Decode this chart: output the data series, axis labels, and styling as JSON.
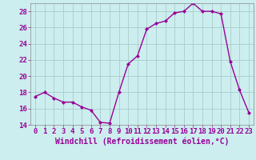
{
  "hours": [
    0,
    1,
    2,
    3,
    4,
    5,
    6,
    7,
    8,
    9,
    10,
    11,
    12,
    13,
    14,
    15,
    16,
    17,
    18,
    19,
    20,
    21,
    22,
    23
  ],
  "values": [
    17.5,
    18.0,
    17.3,
    16.8,
    16.8,
    16.2,
    15.8,
    14.3,
    14.2,
    18.0,
    21.5,
    22.5,
    25.8,
    26.5,
    26.8,
    27.8,
    28.0,
    29.0,
    28.0,
    28.0,
    27.7,
    21.8,
    18.3,
    15.5
  ],
  "line_color": "#990099",
  "marker": "D",
  "marker_size": 2.0,
  "bg_color": "#cceeee",
  "grid_color": "#aacccc",
  "xlabel": "Windchill (Refroidissement éolien,°C)",
  "xlabel_fontsize": 7,
  "ylim": [
    14,
    29
  ],
  "yticks": [
    14,
    16,
    18,
    20,
    22,
    24,
    26,
    28
  ],
  "xlim": [
    -0.5,
    23.5
  ],
  "xticks": [
    0,
    1,
    2,
    3,
    4,
    5,
    6,
    7,
    8,
    9,
    10,
    11,
    12,
    13,
    14,
    15,
    16,
    17,
    18,
    19,
    20,
    21,
    22,
    23
  ],
  "tick_fontsize": 6.5,
  "tick_color": "#990099",
  "spine_color": "#888888",
  "linewidth": 1.0
}
